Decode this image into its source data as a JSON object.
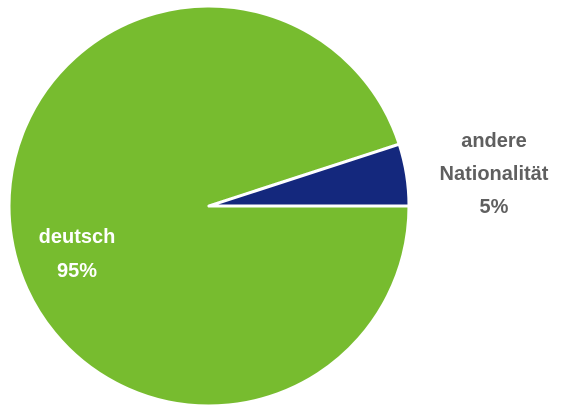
{
  "chart_data": {
    "type": "pie",
    "slices": [
      {
        "label": "deutsch",
        "value_label": "95%",
        "value": 95,
        "color": "#77bc2f",
        "label_color": "#ffffff"
      },
      {
        "label": "andere Nationalität",
        "label_lines": [
          "andere",
          "Nationalität"
        ],
        "value_label": "5%",
        "value": 5,
        "color": "#14287d",
        "label_color": "#5f5f5f"
      }
    ]
  }
}
